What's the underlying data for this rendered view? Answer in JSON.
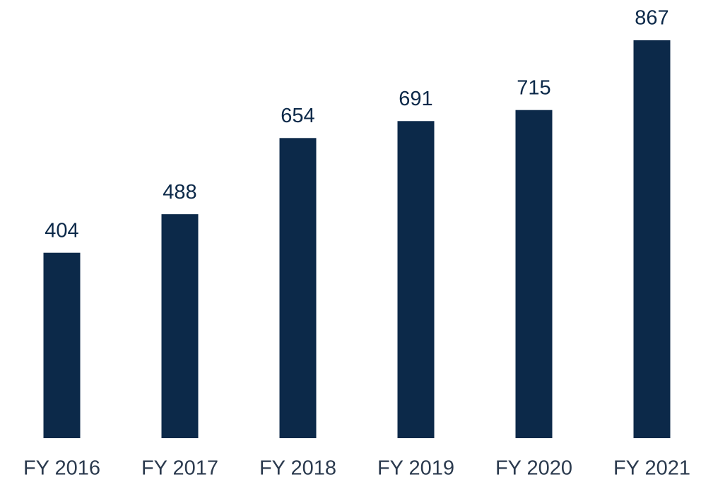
{
  "chart_data": {
    "type": "bar",
    "categories": [
      "FY 2016",
      "FY 2017",
      "FY 2018",
      "FY 2019",
      "FY 2020",
      "FY 2021"
    ],
    "values": [
      404,
      488,
      654,
      691,
      715,
      867
    ],
    "color": "#0c2949"
  }
}
